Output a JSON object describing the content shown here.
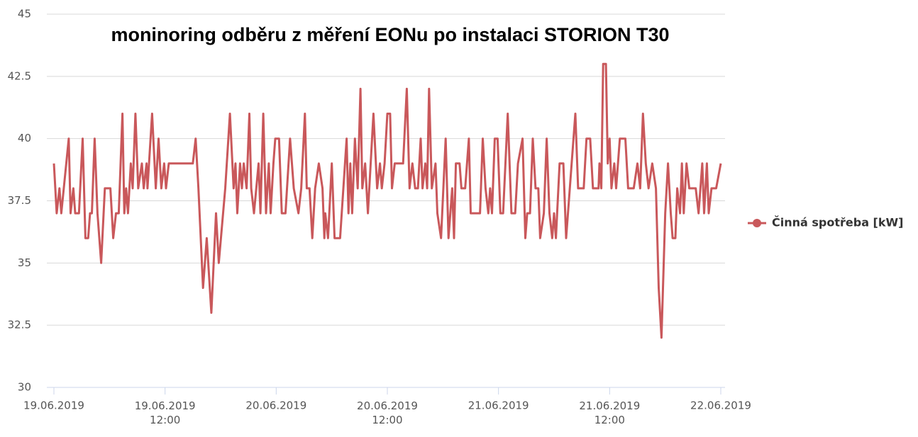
{
  "chart_data": {
    "type": "line",
    "title": "moninoring odběru z měření EONu po instalaci STORION T30",
    "xlim": [
      0,
      72
    ],
    "xticks": [
      {
        "value": 0,
        "label": "19.06.2019"
      },
      {
        "value": 12,
        "label": "19.06.2019 12:00"
      },
      {
        "value": 24,
        "label": "20.06.2019"
      },
      {
        "value": 36,
        "label": "20.06.2019 12:00"
      },
      {
        "value": 48,
        "label": "21.06.2019"
      },
      {
        "value": 60,
        "label": "21.06.2019 12:00"
      },
      {
        "value": 72,
        "label": "22.06.2019"
      }
    ],
    "ylim": [
      30,
      45
    ],
    "yticks": [
      30,
      32.5,
      35,
      37.5,
      40,
      42.5,
      45
    ],
    "grid": true,
    "legend": "right",
    "x": [
      0,
      0.3,
      0.6,
      0.8,
      1.6,
      1.8,
      2.1,
      2.3,
      2.7,
      3.1,
      3.4,
      3.7,
      3.9,
      4.1,
      4.4,
      4.7,
      5.1,
      5.5,
      6.1,
      6.4,
      6.7,
      7.0,
      7.4,
      7.6,
      7.8,
      8.0,
      8.3,
      8.5,
      8.8,
      9.1,
      9.5,
      9.7,
      10.0,
      10.1,
      10.6,
      11.0,
      11.3,
      11.6,
      11.9,
      12.1,
      12.4,
      15.0,
      15.3,
      15.6,
      16.1,
      16.5,
      17.0,
      17.5,
      17.8,
      18.5,
      19.0,
      19.4,
      19.6,
      19.8,
      20.1,
      20.3,
      20.5,
      20.8,
      21.1,
      21.3,
      21.6,
      22.1,
      22.3,
      22.6,
      22.9,
      23.2,
      23.4,
      23.7,
      23.9,
      24.3,
      24.6,
      25.0,
      25.5,
      25.9,
      26.4,
      26.7,
      27.1,
      27.3,
      27.6,
      27.9,
      28.2,
      28.6,
      29.0,
      29.2,
      29.3,
      29.6,
      30.0,
      30.3,
      30.9,
      31.6,
      31.8,
      32.0,
      32.2,
      32.5,
      32.8,
      33.1,
      33.3,
      33.6,
      33.9,
      34.2,
      34.5,
      34.9,
      35.2,
      35.4,
      35.7,
      36.0,
      36.3,
      36.5,
      36.8,
      37.7,
      38.1,
      38.4,
      38.7,
      39.0,
      39.3,
      39.6,
      39.8,
      40.1,
      40.3,
      40.5,
      40.8,
      41.2,
      41.4,
      41.8,
      42.3,
      42.6,
      43.0,
      43.2,
      43.4,
      43.8,
      44.0,
      44.4,
      44.8,
      45.0,
      46.0,
      46.3,
      46.6,
      46.9,
      47.1,
      47.3,
      47.6,
      47.9,
      48.2,
      48.5,
      49.0,
      49.4,
      49.8,
      50.1,
      50.6,
      50.9,
      51.1,
      51.4,
      51.7,
      52.0,
      52.3,
      52.5,
      52.9,
      53.2,
      53.5,
      53.8,
      54.0,
      54.2,
      54.6,
      55.0,
      55.3,
      55.7,
      56.3,
      56.6,
      56.9,
      57.2,
      57.5,
      57.9,
      58.2,
      58.8,
      58.9,
      59.1,
      59.3,
      59.6,
      59.8,
      60.0,
      60.2,
      60.5,
      60.7,
      61.1,
      61.7,
      62.0,
      62.6,
      63.0,
      63.3,
      63.6,
      63.9,
      64.2,
      64.6,
      65.0,
      65.3,
      65.6,
      66.0,
      66.3,
      66.6,
      66.8,
      67.1,
      67.3,
      67.6,
      67.8,
      68.0,
      68.3,
      68.6,
      69.3,
      69.6,
      70.0,
      70.2,
      70.5,
      70.7,
      71.0,
      71.5,
      72.0
    ],
    "series": [
      {
        "name": "Činná spotřeba [kW]",
        "color": "#c9585b",
        "values": [
          39,
          37,
          38,
          37,
          40,
          37,
          38,
          37,
          37,
          40,
          36,
          36,
          37,
          37,
          40,
          37,
          35,
          38,
          38,
          36,
          37,
          37,
          41,
          37,
          38,
          37,
          39,
          38,
          41,
          38,
          39,
          38,
          39,
          38,
          41,
          38,
          40,
          38,
          39,
          38,
          39,
          39,
          40,
          38,
          34,
          36,
          33,
          37,
          35,
          38,
          41,
          38,
          39,
          37,
          39,
          38,
          39,
          38,
          41,
          38,
          37,
          39,
          37,
          41,
          37,
          39,
          37,
          39,
          40,
          40,
          37,
          37,
          40,
          38,
          37,
          38,
          41,
          38,
          38,
          36,
          38,
          39,
          38,
          36,
          37,
          36,
          39,
          36,
          36,
          40,
          37,
          39,
          37,
          40,
          38,
          42,
          38,
          39,
          37,
          39,
          41,
          38,
          39,
          38,
          39,
          41,
          41,
          38,
          39,
          39,
          42,
          38,
          39,
          38,
          38,
          40,
          38,
          39,
          38,
          42,
          38,
          39,
          37,
          36,
          40,
          36,
          38,
          36,
          39,
          39,
          38,
          38,
          40,
          37,
          37,
          40,
          38,
          37,
          38,
          37,
          40,
          40,
          37,
          37,
          41,
          37,
          37,
          39,
          40,
          36,
          37,
          37,
          40,
          38,
          38,
          36,
          37,
          40,
          37,
          36,
          37,
          36,
          39,
          39,
          36,
          38,
          41,
          38,
          38,
          38,
          40,
          40,
          38,
          38,
          39,
          38,
          43,
          43,
          39,
          40,
          38,
          39,
          38,
          40,
          40,
          38,
          38,
          39,
          38,
          41,
          39,
          38,
          39,
          38,
          34,
          32,
          37,
          39,
          37,
          36,
          36,
          38,
          37,
          39,
          37,
          39,
          38,
          38,
          37,
          39,
          37,
          39,
          37,
          38,
          38,
          39
        ]
      }
    ]
  }
}
